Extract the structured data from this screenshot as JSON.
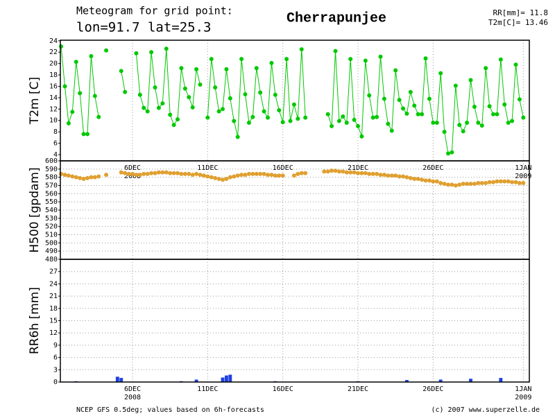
{
  "header": {
    "line1": "Meteogram for grid point:",
    "line2": "lon=91.7 lat=25.3",
    "place": "Cherrapunjee",
    "rr_label": "RR[mm]=",
    "rr_value": 11.8,
    "t_label": "T2m[C]=",
    "t_value": 13.46
  },
  "footer": {
    "left": "NCEP GFS 0.5deg; values based on 6h-forecasts",
    "right": "(c) 2007 www.superzelle.de"
  },
  "chart_data": [
    {
      "type": "line",
      "ylabel": "T2m [C]",
      "xlim": [
        1.2,
        32.4
      ],
      "ylim": [
        2.9,
        24.1
      ],
      "yticks": [
        4,
        6,
        8,
        10,
        12,
        14,
        16,
        18,
        20,
        22,
        24
      ],
      "x": [
        1.25,
        1.5,
        1.75,
        2,
        2.25,
        2.5,
        2.75,
        3,
        3.25,
        3.5,
        3.75,
        4,
        4.25,
        4.5,
        4.75,
        5,
        5.25,
        5.5,
        5.75,
        6,
        6.25,
        6.5,
        6.75,
        7,
        7.25,
        7.5,
        7.75,
        8,
        8.25,
        8.5,
        8.75,
        9,
        9.25,
        9.5,
        9.75,
        10,
        10.25,
        10.5,
        10.75,
        11,
        11.25,
        11.5,
        11.75,
        12,
        12.25,
        12.5,
        12.75,
        13,
        13.25,
        13.5,
        13.75,
        14,
        14.25,
        14.5,
        14.75,
        15,
        15.25,
        15.5,
        15.75,
        16,
        16.25,
        16.5,
        16.75,
        17,
        17.25,
        17.5,
        17.75,
        18,
        18.25,
        18.5,
        18.75,
        19,
        19.25,
        19.5,
        19.75,
        20,
        20.25,
        20.5,
        20.75,
        21,
        21.25,
        21.5,
        21.75,
        22,
        22.25,
        22.5,
        22.75,
        23,
        23.25,
        23.5,
        23.75,
        24,
        24.25,
        24.5,
        24.75,
        25,
        25.25,
        25.5,
        25.75,
        26,
        26.25,
        26.5,
        26.75,
        27,
        27.25,
        27.5,
        27.75,
        28,
        28.25,
        28.5,
        28.75,
        29,
        29.25,
        29.5,
        29.75,
        30,
        30.25,
        30.5,
        30.75,
        31,
        31.25,
        31.5,
        31.75,
        32
      ],
      "series": [
        {
          "name": "T2m",
          "color": "#00c800",
          "values": [
            23,
            16,
            9.5,
            11.5,
            20.3,
            14.8,
            7.6,
            7.6,
            21.3,
            14.3,
            10.6,
            null,
            22.3,
            null,
            null,
            null,
            18.7,
            15,
            null,
            null,
            21.8,
            14.5,
            12.2,
            11.6,
            22,
            15.8,
            12.2,
            13,
            22.6,
            11,
            9.2,
            10.2,
            19.2,
            15.6,
            14.1,
            12.3,
            19,
            16.3,
            null,
            10.5,
            20.8,
            15.8,
            11.6,
            12,
            19,
            13.9,
            9.9,
            7.1,
            20.8,
            14.6,
            9.6,
            10.6,
            19.2,
            14.9,
            11.6,
            10.5,
            20.1,
            14.5,
            11.8,
            9.7,
            20.8,
            9.9,
            12.8,
            10.3,
            22.5,
            10.5,
            null,
            null,
            null,
            null,
            null,
            11.1,
            9,
            22.2,
            9.9,
            10.7,
            9.6,
            20.8,
            10.1,
            9,
            7.2,
            20.5,
            14.4,
            10.5,
            10.6,
            21.2,
            13.8,
            9.4,
            8.2,
            18.8,
            13.6,
            12.1,
            11.2,
            15,
            12.6,
            11.1,
            11.1,
            20.9,
            13.8,
            9.6,
            9.6,
            18.3,
            8,
            4.2,
            4.4,
            16.1,
            9.2,
            8.1,
            9.6,
            17.1,
            12.4,
            9.6,
            9.1,
            19.2,
            12.5,
            11.1,
            11.1,
            20.7,
            12.8,
            9.6,
            9.9,
            19.8,
            13.7,
            10.5
          ]
        }
      ]
    },
    {
      "type": "scatter",
      "ylabel": "H500 [gpdam]",
      "xlim": [
        1.2,
        32.4
      ],
      "ylim": [
        480,
        600
      ],
      "yticks": [
        480,
        490,
        500,
        510,
        520,
        530,
        540,
        550,
        560,
        570,
        580,
        590,
        600
      ],
      "grid": true,
      "xticks": [
        {
          "value": 6,
          "label": "6DEC",
          "sublabel": "2008"
        },
        {
          "value": 11,
          "label": "11DEC"
        },
        {
          "value": 16,
          "label": "16DEC"
        },
        {
          "value": 21,
          "label": "21DEC"
        },
        {
          "value": 26,
          "label": "26DEC"
        },
        {
          "value": 32,
          "label": "1JAN",
          "sublabel": "2009"
        }
      ],
      "x": [
        1.25,
        1.5,
        1.75,
        2,
        2.25,
        2.5,
        2.75,
        3,
        3.25,
        3.5,
        3.75,
        4,
        4.25,
        4.5,
        4.75,
        5,
        5.25,
        5.5,
        5.75,
        6,
        6.25,
        6.5,
        6.75,
        7,
        7.25,
        7.5,
        7.75,
        8,
        8.25,
        8.5,
        8.75,
        9,
        9.25,
        9.5,
        9.75,
        10,
        10.25,
        10.5,
        10.75,
        11,
        11.25,
        11.5,
        11.75,
        12,
        12.25,
        12.5,
        12.75,
        13,
        13.25,
        13.5,
        13.75,
        14,
        14.25,
        14.5,
        14.75,
        15,
        15.25,
        15.5,
        15.75,
        16,
        16.25,
        16.5,
        16.75,
        17,
        17.25,
        17.5,
        17.75,
        18,
        18.25,
        18.5,
        18.75,
        19,
        19.25,
        19.5,
        19.75,
        20,
        20.25,
        20.5,
        20.75,
        21,
        21.25,
        21.5,
        21.75,
        22,
        22.25,
        22.5,
        22.75,
        23,
        23.25,
        23.5,
        23.75,
        24,
        24.25,
        24.5,
        24.75,
        25,
        25.25,
        25.5,
        25.75,
        26,
        26.25,
        26.5,
        26.75,
        27,
        27.25,
        27.5,
        27.75,
        28,
        28.25,
        28.5,
        28.75,
        29,
        29.25,
        29.5,
        29.75,
        30,
        30.25,
        30.5,
        30.75,
        31,
        31.25,
        31.5,
        31.75,
        32
      ],
      "series": [
        {
          "name": "H500",
          "color": "#e0a030",
          "values": [
            584,
            583,
            582,
            581,
            580,
            579,
            578,
            579,
            580,
            580,
            581,
            null,
            583,
            null,
            null,
            null,
            586,
            585,
            584,
            584,
            583,
            583,
            584,
            584,
            585,
            585,
            586,
            586,
            586,
            585,
            585,
            585,
            584,
            584,
            584,
            583,
            584,
            583,
            582,
            581,
            580,
            579,
            578,
            577,
            578,
            580,
            581,
            582,
            583,
            583,
            584,
            584,
            584,
            584,
            584,
            583,
            583,
            582,
            582,
            582,
            null,
            null,
            582,
            584,
            585,
            585,
            null,
            null,
            null,
            null,
            587,
            587,
            588,
            588,
            587,
            587,
            586,
            586,
            586,
            585,
            585,
            585,
            584,
            584,
            584,
            583,
            583,
            582,
            582,
            582,
            581,
            581,
            580,
            579,
            578,
            578,
            577,
            576,
            576,
            575,
            575,
            573,
            572,
            571,
            571,
            570,
            571,
            572,
            572,
            572,
            572,
            573,
            573,
            573,
            574,
            574,
            575,
            575,
            575,
            575,
            574,
            574,
            573,
            573
          ]
        }
      ]
    },
    {
      "type": "bar",
      "ylabel": "RR6h [mm]",
      "xlim": [
        1.2,
        32.4
      ],
      "ylim": [
        0,
        30
      ],
      "yticks": [
        0,
        3,
        6,
        9,
        12,
        15,
        18,
        21,
        24,
        27
      ],
      "grid": true,
      "xticks": [
        {
          "value": 6,
          "label": "6DEC",
          "sublabel": "2008"
        },
        {
          "value": 11,
          "label": "11DEC"
        },
        {
          "value": 16,
          "label": "16DEC"
        },
        {
          "value": 21,
          "label": "21DEC"
        },
        {
          "value": 26,
          "label": "26DEC"
        },
        {
          "value": 32,
          "label": "1JAN",
          "sublabel": "2009"
        }
      ],
      "x": [
        1.25,
        1.5,
        1.75,
        2,
        2.25,
        2.5,
        2.75,
        3,
        3.25,
        3.5,
        3.75,
        4,
        4.25,
        4.5,
        4.75,
        5,
        5.25,
        5.5,
        5.75,
        6,
        6.25,
        6.5,
        6.75,
        7,
        7.25,
        7.5,
        7.75,
        8,
        8.25,
        8.5,
        8.75,
        9,
        9.25,
        9.5,
        9.75,
        10,
        10.25,
        10.5,
        10.75,
        11,
        11.25,
        11.5,
        11.75,
        12,
        12.25,
        12.5,
        12.75,
        13,
        13.25,
        13.5,
        13.75,
        14,
        14.25,
        14.5,
        14.75,
        15,
        15.25,
        15.5,
        15.75,
        16,
        16.25,
        16.5,
        16.75,
        17,
        17.25,
        17.5,
        17.75,
        18,
        18.25,
        18.5,
        18.75,
        19,
        19.25,
        19.5,
        19.75,
        20,
        20.25,
        20.5,
        20.75,
        21,
        21.25,
        21.5,
        21.75,
        22,
        22.25,
        22.5,
        22.75,
        23,
        23.25,
        23.5,
        23.75,
        24,
        24.25,
        24.5,
        24.75,
        25,
        25.25,
        25.5,
        25.75,
        26,
        26.25,
        26.5,
        26.75,
        27,
        27.25,
        27.5,
        27.75,
        28,
        28.25,
        28.5,
        28.75,
        29,
        29.25,
        29.5,
        29.75,
        30,
        30.25,
        30.5,
        30.75,
        31,
        31.25,
        31.5,
        31.75,
        32
      ],
      "series": [
        {
          "name": "RR6h",
          "color": "#2040e0",
          "values": [
            0,
            0,
            0,
            0,
            0.2,
            0,
            0,
            0,
            0,
            0,
            0,
            0,
            0,
            0,
            0,
            1.3,
            1.0,
            0,
            0,
            0,
            0,
            0,
            0,
            0,
            0,
            0,
            0,
            0,
            0,
            0,
            0,
            0,
            0.2,
            0,
            0,
            0,
            0.6,
            0,
            0,
            0,
            0,
            0,
            0,
            1.1,
            1.6,
            1.8,
            0,
            0,
            0,
            0,
            0,
            0,
            0,
            0,
            0,
            0,
            0,
            0.2,
            0,
            0,
            0,
            0,
            0,
            0,
            0,
            0,
            0,
            0,
            0,
            0,
            0,
            0,
            0,
            0,
            0,
            0,
            0,
            0,
            0,
            0.2,
            0,
            0,
            0,
            0,
            0,
            0,
            0,
            0,
            0,
            0,
            0,
            0,
            0.5,
            0,
            0,
            0,
            0,
            0,
            0,
            0,
            0,
            0.6,
            0,
            0,
            0,
            0,
            0,
            0,
            0,
            0.8,
            0,
            0,
            0,
            0,
            0,
            0,
            0,
            1.0,
            0,
            0,
            0,
            0,
            0,
            0
          ]
        }
      ]
    }
  ]
}
